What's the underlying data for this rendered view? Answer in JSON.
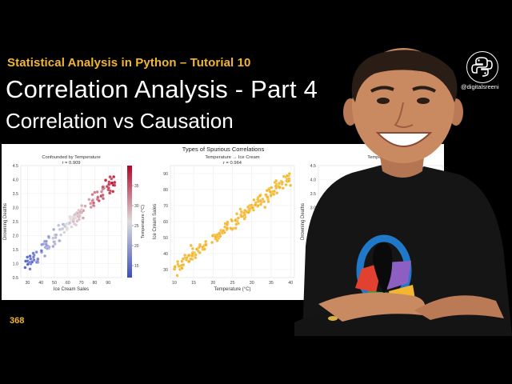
{
  "series_title": "Statistical Analysis in Python – Tutorial 10",
  "main_title": "Correlation Analysis - Part 4",
  "sub_title": "Correlation vs Causation",
  "episode_number": "368",
  "channel_handle": "@digitalsreeni",
  "logo_icon": "python-logo-icon",
  "figure": {
    "suptitle": "Types of Spurious Correlations"
  },
  "chart_data": [
    {
      "type": "scatter",
      "title": "Confounded by Temperature",
      "annotation": "r = 0.909",
      "xlabel": "Ice Cream Sales",
      "ylabel": "Drowning Deaths",
      "xlim": [
        25,
        100
      ],
      "ylim": [
        0.5,
        4.5
      ],
      "xticks": [
        "30",
        "40",
        "50",
        "60",
        "70",
        "80",
        "90"
      ],
      "yticks": [
        "0.5",
        "1.0",
        "1.5",
        "2.0",
        "2.5",
        "3.0",
        "3.5",
        "4.0",
        "4.5"
      ],
      "colorbar": {
        "label": "Temperature (°C)",
        "ticks": [
          "15",
          "20",
          "25",
          "30",
          "35"
        ],
        "range": [
          12,
          40
        ],
        "cmap": "coolwarm"
      },
      "trend": {
        "x": [
          25,
          97
        ],
        "y": [
          0.7,
          4.1
        ]
      },
      "x_range": [
        28,
        96
      ],
      "y_noise": 0.35,
      "n_points": 150
    },
    {
      "type": "scatter",
      "title": "Temperature → Ice Cream",
      "annotation": "r = 0.964",
      "xlabel": "Temperature (°C)",
      "ylabel": "Ice Cream Sales",
      "xlim": [
        9,
        41
      ],
      "ylim": [
        25,
        95
      ],
      "xticks": [
        "10",
        "15",
        "20",
        "25",
        "30",
        "35",
        "40"
      ],
      "yticks": [
        "30",
        "40",
        "50",
        "60",
        "70",
        "80",
        "90"
      ],
      "color": "#f2b01c",
      "trend": {
        "x": [
          10,
          40
        ],
        "y": [
          30,
          88
        ]
      },
      "x_range": [
        10,
        40
      ],
      "y_noise": 5,
      "n_points": 200
    },
    {
      "type": "scatter",
      "title": "Temperature",
      "annotation": "",
      "xlabel": "",
      "ylabel": "Drowning Deaths",
      "xlim": [
        9,
        41
      ],
      "ylim": [
        0.5,
        4.5
      ],
      "xticks": [],
      "yticks": [
        "4.5",
        "4.0",
        "3.5",
        "3.0",
        "2.5"
      ],
      "color": "#4a7fc1",
      "partially_hidden": true
    }
  ],
  "colors": {
    "series_title": "#f2b632",
    "episode_number": "#f2b632",
    "background": "#000000",
    "shirt": "#151515",
    "skin": "#c98a62"
  }
}
